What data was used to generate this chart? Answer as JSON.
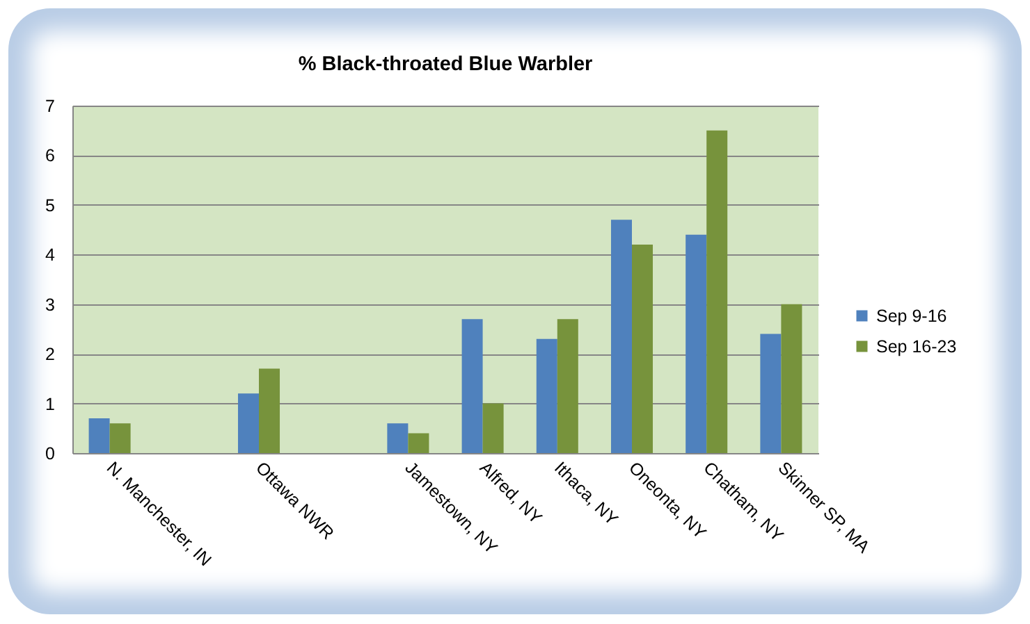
{
  "chart_data": {
    "type": "bar",
    "title": "% Black-throated  Blue Warbler",
    "categories": [
      "N. Manchester, IN",
      null,
      "Ottawa NWR",
      null,
      "Jamestown, NY",
      "Alfred, NY",
      "Ithaca, NY",
      "Oneonta, NY",
      "Chatham, NY",
      "Skinner SP, MA"
    ],
    "series": [
      {
        "name": "Sep 9-16",
        "color": "#4f81bd",
        "values": [
          0.7,
          null,
          1.2,
          null,
          0.6,
          2.7,
          2.3,
          4.7,
          4.4,
          2.4
        ]
      },
      {
        "name": "Sep 16-23",
        "color": "#77933c",
        "values": [
          0.6,
          null,
          1.7,
          null,
          0.4,
          1.0,
          2.7,
          4.2,
          6.5,
          3.0
        ]
      }
    ],
    "ylim": [
      0,
      7
    ],
    "yticks": [
      0,
      1,
      2,
      3,
      4,
      5,
      6,
      7
    ],
    "grid": "y",
    "legend": "right"
  }
}
